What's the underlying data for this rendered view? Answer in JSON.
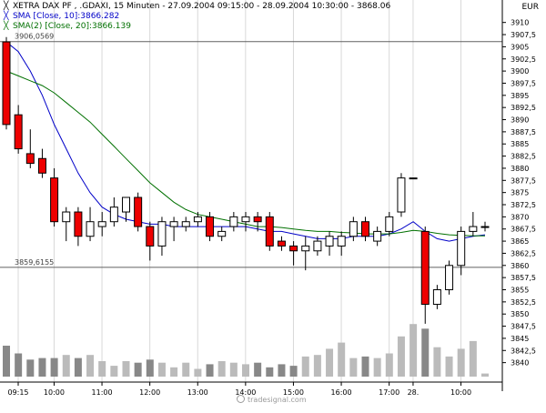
{
  "header": {
    "title": "XETRA DAX PF    , .GDAXI, 15 Minuten - 27.09.2004 09:15:00 - 28.09.2004 10:30:00 - 3868.06",
    "sma10": "SMA [Close, 10]:3866.282",
    "sma20": "SMA(2) [Close, 20]:3866.139",
    "currency": "EUR"
  },
  "watermark": "tradesignal.com",
  "colors": {
    "up_candle": "#ffffff",
    "down_candle": "#ee0000",
    "sma10": "#0000c8",
    "sma20": "#007000",
    "volume": "#888888",
    "volume_light": "#bbbbbb"
  },
  "chart_data": {
    "type": "candlestick",
    "title": "XETRA DAX PF , .GDAXI, 15 Minuten",
    "ylabel": "EUR",
    "ylim": [
      3836,
      3912
    ],
    "y_ticks": [
      "3910",
      "3907,5",
      "3905",
      "3902,5",
      "3900",
      "3897,5",
      "3895",
      "3892,5",
      "3890",
      "3887,5",
      "3885",
      "3882,5",
      "3880",
      "3877,5",
      "3875",
      "3872,5",
      "3870",
      "3867,5",
      "3865",
      "3862,5",
      "3860",
      "3857,5",
      "3855",
      "3852,5",
      "3850",
      "3847,5",
      "3845",
      "3842,5",
      "3840"
    ],
    "y_tick_values": [
      3910,
      3907.5,
      3905,
      3902.5,
      3900,
      3897.5,
      3895,
      3892.5,
      3890,
      3887.5,
      3885,
      3882.5,
      3880,
      3877.5,
      3875,
      3872.5,
      3870,
      3867.5,
      3865,
      3862.5,
      3860,
      3857.5,
      3855,
      3852.5,
      3850,
      3847.5,
      3845,
      3842.5,
      3840
    ],
    "x_tick_labels": [
      {
        "label": "09:15",
        "index": 0
      },
      {
        "label": "10:00",
        "index": 3
      },
      {
        "label": "11:00",
        "index": 7
      },
      {
        "label": "12:00",
        "index": 11
      },
      {
        "label": "13:00",
        "index": 15
      },
      {
        "label": "14:00",
        "index": 19
      },
      {
        "label": "15:00",
        "index": 23
      },
      {
        "label": "16:00",
        "index": 27
      },
      {
        "label": "17:00",
        "index": 31
      },
      {
        "label": "28.",
        "index": 33
      },
      {
        "label": "10:00",
        "index": 37
      }
    ],
    "reference_lines": [
      {
        "label": "3906,0569",
        "value": 3906.06
      },
      {
        "label": "3859,6155",
        "value": 3859.62
      }
    ],
    "candles": [
      {
        "o": 3906,
        "h": 3907,
        "l": 3888,
        "c": 3889
      },
      {
        "o": 3891,
        "h": 3893,
        "l": 3883,
        "c": 3884
      },
      {
        "o": 3883,
        "h": 3888,
        "l": 3880,
        "c": 3881
      },
      {
        "o": 3882,
        "h": 3884,
        "l": 3878,
        "c": 3879
      },
      {
        "o": 3878,
        "h": 3880,
        "l": 3868,
        "c": 3869
      },
      {
        "o": 3869,
        "h": 3872,
        "l": 3865,
        "c": 3871
      },
      {
        "o": 3871,
        "h": 3872,
        "l": 3864,
        "c": 3866
      },
      {
        "o": 3866,
        "h": 3872,
        "l": 3865,
        "c": 3869
      },
      {
        "o": 3868,
        "h": 3871,
        "l": 3866,
        "c": 3869
      },
      {
        "o": 3869,
        "h": 3874,
        "l": 3868,
        "c": 3872
      },
      {
        "o": 3871,
        "h": 3874,
        "l": 3869,
        "c": 3874
      },
      {
        "o": 3874,
        "h": 3875,
        "l": 3867,
        "c": 3868
      },
      {
        "o": 3868,
        "h": 3869,
        "l": 3861,
        "c": 3864
      },
      {
        "o": 3864,
        "h": 3870,
        "l": 3862,
        "c": 3869
      },
      {
        "o": 3868,
        "h": 3870,
        "l": 3865,
        "c": 3869
      },
      {
        "o": 3868,
        "h": 3870,
        "l": 3867,
        "c": 3869
      },
      {
        "o": 3869,
        "h": 3871,
        "l": 3868,
        "c": 3870
      },
      {
        "o": 3870,
        "h": 3871,
        "l": 3865,
        "c": 3866
      },
      {
        "o": 3866,
        "h": 3868,
        "l": 3865,
        "c": 3867
      },
      {
        "o": 3868,
        "h": 3871,
        "l": 3867,
        "c": 3870
      },
      {
        "o": 3869,
        "h": 3871,
        "l": 3867,
        "c": 3870
      },
      {
        "o": 3870,
        "h": 3871,
        "l": 3867,
        "c": 3869
      },
      {
        "o": 3870,
        "h": 3871,
        "l": 3863,
        "c": 3864
      },
      {
        "o": 3865,
        "h": 3866,
        "l": 3863,
        "c": 3864
      },
      {
        "o": 3864,
        "h": 3865,
        "l": 3860,
        "c": 3863
      },
      {
        "o": 3863,
        "h": 3866,
        "l": 3859,
        "c": 3864
      },
      {
        "o": 3863,
        "h": 3866,
        "l": 3862,
        "c": 3865
      },
      {
        "o": 3864,
        "h": 3867,
        "l": 3862,
        "c": 3866
      },
      {
        "o": 3864,
        "h": 3867,
        "l": 3862,
        "c": 3866
      },
      {
        "o": 3866,
        "h": 3870,
        "l": 3865,
        "c": 3869
      },
      {
        "o": 3869,
        "h": 3870,
        "l": 3865,
        "c": 3866
      },
      {
        "o": 3865,
        "h": 3868,
        "l": 3864,
        "c": 3867
      },
      {
        "o": 3867,
        "h": 3871,
        "l": 3866,
        "c": 3870
      },
      {
        "o": 3871,
        "h": 3879,
        "l": 3870,
        "c": 3878
      },
      {
        "o": 3878,
        "h": 3878,
        "l": 3878,
        "c": 3878
      },
      {
        "o": 3867,
        "h": 3868,
        "l": 3848,
        "c": 3852
      },
      {
        "o": 3852,
        "h": 3856,
        "l": 3851,
        "c": 3855
      },
      {
        "o": 3855,
        "h": 3861,
        "l": 3854,
        "c": 3860
      },
      {
        "o": 3860,
        "h": 3868,
        "l": 3858,
        "c": 3867
      },
      {
        "o": 3867,
        "h": 3871,
        "l": 3866,
        "c": 3868
      },
      {
        "o": 3868,
        "h": 3869,
        "l": 3867,
        "c": 3868
      }
    ],
    "volume": [
      40,
      30,
      22,
      24,
      24,
      28,
      24,
      28,
      20,
      14,
      20,
      18,
      22,
      18,
      12,
      18,
      10,
      16,
      20,
      18,
      16,
      18,
      12,
      16,
      14,
      26,
      28,
      36,
      44,
      24,
      26,
      24,
      30,
      52,
      68,
      62,
      38,
      26,
      36,
      46,
      4
    ],
    "series": [
      {
        "name": "SMA [Close, 10]",
        "values": [
          3906,
          3904,
          3900,
          3895,
          3889,
          3884,
          3879,
          3875,
          3872,
          3870.5,
          3869.5,
          3869,
          3868.5,
          3868.5,
          3868,
          3868,
          3868,
          3868,
          3868,
          3868,
          3868,
          3867.5,
          3867,
          3867,
          3866.5,
          3866,
          3865.5,
          3865.5,
          3865.5,
          3866,
          3866,
          3866,
          3866.5,
          3867.5,
          3869,
          3867,
          3865.5,
          3865,
          3865.5,
          3866,
          3866.3
        ]
      },
      {
        "name": "SMA(2) [Close, 20]",
        "values": [
          3900,
          3899,
          3898,
          3897,
          3895.5,
          3893.5,
          3891.5,
          3889.5,
          3887,
          3884.5,
          3882,
          3879.5,
          3877,
          3875,
          3873,
          3871.5,
          3870.5,
          3870,
          3869.5,
          3869,
          3868.5,
          3868,
          3868,
          3867.8,
          3867.5,
          3867.2,
          3867,
          3867,
          3866.8,
          3866.7,
          3866.5,
          3866.5,
          3866.5,
          3866.8,
          3867.2,
          3867,
          3866.6,
          3866.3,
          3866.2,
          3866.1,
          3866.1
        ]
      }
    ]
  }
}
